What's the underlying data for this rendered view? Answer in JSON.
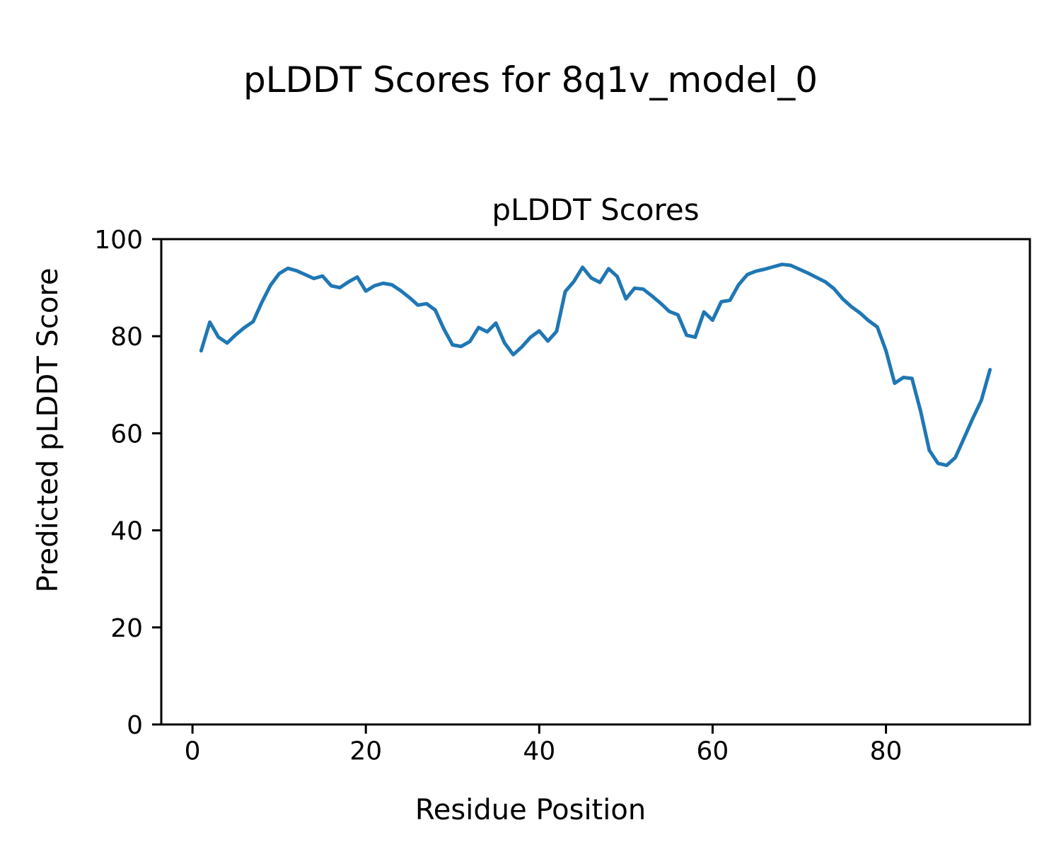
{
  "figure": {
    "suptitle": "pLDDT Scores for 8q1v_model_0",
    "background_color": "#ffffff",
    "text_color": "#000000",
    "spine_color": "#000000"
  },
  "chart_data": {
    "type": "line",
    "title": "pLDDT Scores",
    "xlabel": "Residue Position",
    "ylabel": "Predicted pLDDT Score",
    "xlim": [
      -3.6,
      96.6
    ],
    "ylim": [
      0,
      100
    ],
    "xticks": [
      0,
      20,
      40,
      60,
      80
    ],
    "yticks": [
      0,
      20,
      40,
      60,
      80,
      100
    ],
    "grid": false,
    "legend": "none",
    "series": [
      {
        "name": "pLDDT",
        "color": "#1f77b4",
        "line_width": 5,
        "x": [
          1,
          2,
          3,
          4,
          5,
          6,
          7,
          8,
          9,
          10,
          11,
          12,
          13,
          14,
          15,
          16,
          17,
          18,
          19,
          20,
          21,
          22,
          23,
          24,
          25,
          26,
          27,
          28,
          29,
          30,
          31,
          32,
          33,
          34,
          35,
          36,
          37,
          38,
          39,
          40,
          41,
          42,
          43,
          44,
          45,
          46,
          47,
          48,
          49,
          50,
          51,
          52,
          53,
          54,
          55,
          56,
          57,
          58,
          59,
          60,
          61,
          62,
          63,
          64,
          65,
          66,
          67,
          68,
          69,
          70,
          71,
          72,
          73,
          74,
          75,
          76,
          77,
          78,
          79,
          80,
          81,
          82,
          83,
          84,
          85,
          86,
          87,
          88,
          89,
          90,
          91,
          92
        ],
        "y": [
          77.0,
          82.9,
          79.8,
          78.6,
          80.3,
          81.8,
          83.0,
          87.0,
          90.5,
          92.9,
          94.0,
          93.5,
          92.7,
          91.9,
          92.4,
          90.4,
          90.0,
          91.2,
          92.2,
          89.3,
          90.4,
          90.9,
          90.6,
          89.4,
          88.0,
          86.4,
          86.7,
          85.4,
          81.5,
          78.2,
          77.9,
          78.9,
          81.8,
          80.9,
          82.7,
          78.6,
          76.2,
          77.8,
          79.8,
          81.1,
          79.0,
          81.0,
          89.2,
          91.3,
          94.2,
          92.0,
          91.1,
          93.9,
          92.3,
          87.7,
          89.9,
          89.7,
          88.3,
          86.8,
          85.1,
          84.4,
          80.2,
          79.8,
          85.0,
          83.3,
          87.1,
          87.4,
          90.6,
          92.7,
          93.4,
          93.8,
          94.3,
          94.8,
          94.6,
          93.8,
          93.0,
          92.1,
          91.2,
          89.8,
          87.7,
          86.1,
          84.8,
          83.2,
          81.9,
          77.0,
          70.3,
          71.5,
          71.3,
          64.5,
          56.5,
          53.8,
          53.4,
          55.0,
          59.0,
          63.0,
          66.8,
          73.1
        ]
      }
    ]
  }
}
